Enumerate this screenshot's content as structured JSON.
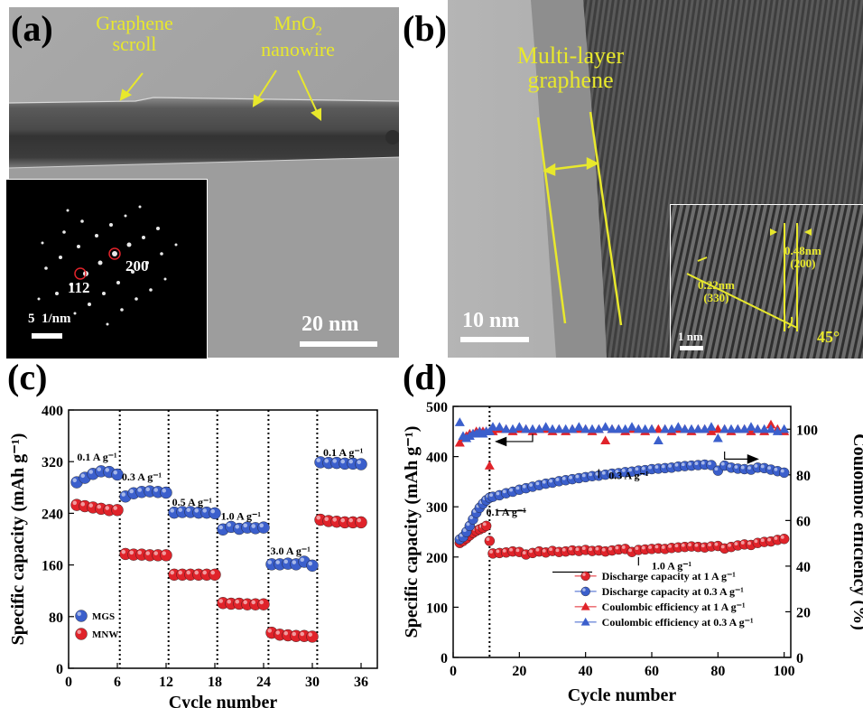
{
  "figure": {
    "panels": {
      "a": {
        "label": "(a)",
        "annotations": [
          "Graphene",
          "scroll",
          "MnO",
          "2",
          "nanowire"
        ],
        "inset": {
          "spots": [
            "200",
            "112"
          ],
          "scale_num": "5",
          "scale_unit": "1/nm"
        },
        "scale_bar": "20 nm"
      },
      "b": {
        "label": "(b)",
        "annotations": [
          "Multi-layer",
          "graphene"
        ],
        "scale_bar": "10 nm",
        "inset": {
          "d1": "0.48nm",
          "d1_plane": "(200)",
          "d2": "0.22nm",
          "d2_plane": "(330)",
          "angle": "45°",
          "scale_bar": "1 nm"
        }
      },
      "c": {
        "label": "(c)"
      },
      "d": {
        "label": "(d)"
      }
    }
  },
  "chart_data": [
    {
      "type": "scatter",
      "panel": "c",
      "xlabel": "Cycle number",
      "ylabel": "Specific capacity (mAh g⁻¹)",
      "xlim": [
        0,
        38
      ],
      "ylim": [
        0,
        400
      ],
      "xticks": [
        0,
        6,
        12,
        18,
        24,
        30,
        36
      ],
      "yticks": [
        0,
        80,
        160,
        240,
        320,
        400
      ],
      "legend_position": "bottom-left",
      "rate_labels": [
        {
          "text": "0.1 A g⁻¹",
          "x": 3.5,
          "y": 322
        },
        {
          "text": "0.3 A g⁻¹",
          "x": 9.0,
          "y": 291
        },
        {
          "text": "0.5 A g⁻¹",
          "x": 15.2,
          "y": 252
        },
        {
          "text": "1.0 A g⁻¹",
          "x": 21.2,
          "y": 230
        },
        {
          "text": "3.0 A g⁻¹",
          "x": 27.3,
          "y": 176
        },
        {
          "text": "0.1 A g⁻¹",
          "x": 33.8,
          "y": 329
        }
      ],
      "dividers_x": [
        6.3,
        12.3,
        18.3,
        24.6,
        30.6
      ],
      "series": [
        {
          "name": "MGS",
          "color": "#3b5fcc",
          "x": [
            1,
            2,
            3,
            4,
            5,
            6,
            7,
            8,
            9,
            10,
            11,
            12,
            13,
            14,
            15,
            16,
            17,
            18,
            19,
            20,
            21,
            22,
            23,
            24,
            25,
            26,
            27,
            28,
            29,
            30,
            31,
            32,
            33,
            34,
            35,
            36
          ],
          "y": [
            288,
            295,
            301,
            305,
            304,
            300,
            266,
            271,
            273,
            274,
            273,
            272,
            241,
            242,
            242,
            241,
            241,
            240,
            215,
            219,
            216,
            218,
            217,
            218,
            161,
            161,
            162,
            161,
            165,
            159,
            319,
            318,
            318,
            317,
            317,
            316
          ]
        },
        {
          "name": "MNW",
          "color": "#e0232a",
          "x": [
            1,
            2,
            3,
            4,
            5,
            6,
            7,
            8,
            9,
            10,
            11,
            12,
            13,
            14,
            15,
            16,
            17,
            18,
            19,
            20,
            21,
            22,
            23,
            24,
            25,
            26,
            27,
            28,
            29,
            30,
            31,
            32,
            33,
            34,
            35,
            36
          ],
          "y": [
            253,
            251,
            249,
            247,
            245,
            245,
            177,
            176,
            176,
            175,
            175,
            175,
            145,
            145,
            145,
            145,
            145,
            145,
            101,
            100,
            100,
            99,
            99,
            99,
            55,
            52,
            51,
            50,
            50,
            49,
            230,
            228,
            227,
            226,
            226,
            226
          ]
        }
      ]
    },
    {
      "type": "scatter",
      "panel": "d",
      "xlabel": "Cycle number",
      "ylabel": "Specific capacity (mAh g⁻¹)",
      "y2label": "Coulombic efficiency (%)",
      "xlim": [
        0,
        102
      ],
      "ylim": [
        0,
        500
      ],
      "y2lim": [
        0,
        110
      ],
      "xticks": [
        0,
        20,
        40,
        60,
        80,
        100
      ],
      "yticks": [
        0,
        100,
        200,
        300,
        400,
        500
      ],
      "y2ticks": [
        0,
        20,
        40,
        60,
        80,
        100
      ],
      "legend_position": "bottom-right",
      "divider_x": 11,
      "annotations": [
        {
          "text": "0.3 A g⁻¹",
          "x": 53,
          "y": 355
        },
        {
          "text": "0.1 A g⁻¹",
          "x": 16,
          "y": 282
        },
        {
          "text": "1.0 A g⁻¹",
          "x": 66,
          "y": 175
        }
      ],
      "series": [
        {
          "name": "Discharge capacity at 1 A g⁻¹",
          "axis": "left",
          "marker": "circle",
          "color": "#e0232a",
          "x": [
            2,
            3,
            4,
            5,
            6,
            7,
            8,
            9,
            10,
            11,
            12,
            14,
            16,
            18,
            20,
            22,
            24,
            26,
            28,
            30,
            32,
            34,
            36,
            38,
            40,
            42,
            44,
            46,
            48,
            50,
            52,
            54,
            56,
            58,
            60,
            62,
            64,
            66,
            68,
            70,
            72,
            74,
            76,
            78,
            80,
            82,
            84,
            86,
            88,
            90,
            92,
            94,
            96,
            98,
            100
          ],
          "y": [
            228,
            232,
            237,
            243,
            248,
            252,
            255,
            258,
            262,
            232,
            207,
            208,
            209,
            211,
            210,
            205,
            208,
            211,
            209,
            212,
            210,
            211,
            213,
            212,
            214,
            212,
            213,
            211,
            213,
            215,
            216,
            210,
            214,
            215,
            216,
            217,
            216,
            218,
            219,
            220,
            221,
            220,
            219,
            221,
            222,
            217,
            220,
            223,
            225,
            224,
            228,
            230,
            231,
            234,
            236
          ]
        },
        {
          "name": "Discharge capacity at 0.3 A g⁻¹",
          "axis": "left",
          "marker": "circle",
          "color": "#3b5fcc",
          "x": [
            2,
            3,
            4,
            5,
            6,
            7,
            8,
            9,
            10,
            11,
            12,
            14,
            16,
            18,
            20,
            22,
            24,
            26,
            28,
            30,
            32,
            34,
            36,
            38,
            40,
            42,
            44,
            46,
            48,
            50,
            52,
            54,
            56,
            58,
            60,
            62,
            64,
            66,
            68,
            70,
            72,
            74,
            76,
            78,
            80,
            82,
            84,
            86,
            88,
            90,
            92,
            94,
            96,
            98,
            100
          ],
          "y": [
            235,
            240,
            250,
            262,
            275,
            288,
            298,
            306,
            313,
            318,
            320,
            323,
            327,
            330,
            334,
            337,
            340,
            343,
            346,
            348,
            351,
            353,
            355,
            357,
            359,
            361,
            362,
            364,
            366,
            367,
            369,
            370,
            372,
            373,
            375,
            376,
            377,
            378,
            380,
            381,
            382,
            383,
            384,
            383,
            372,
            382,
            378,
            376,
            375,
            374,
            378,
            377,
            374,
            371,
            368
          ]
        },
        {
          "name": "Coulombic efficiency at 1 A g⁻¹",
          "axis": "right",
          "marker": "triangle",
          "color": "#e0232a",
          "x": [
            2,
            3,
            4,
            5,
            6,
            7,
            8,
            9,
            10,
            11,
            12,
            14,
            16,
            18,
            20,
            22,
            24,
            26,
            28,
            30,
            32,
            34,
            36,
            38,
            40,
            42,
            44,
            46,
            48,
            50,
            52,
            54,
            56,
            58,
            60,
            62,
            64,
            66,
            68,
            70,
            72,
            74,
            76,
            78,
            80,
            82,
            84,
            86,
            88,
            90,
            92,
            94,
            96,
            98,
            100
          ],
          "y": [
            94,
            96,
            97,
            98,
            98,
            99,
            99,
            99,
            99,
            84,
            99,
            100,
            100,
            99,
            100,
            100,
            99,
            100,
            100,
            99,
            100,
            99,
            100,
            100,
            100,
            99,
            100,
            95,
            100,
            100,
            99,
            100,
            100,
            99,
            100,
            100,
            100,
            99,
            100,
            100,
            99,
            100,
            100,
            99,
            100,
            100,
            99,
            100,
            100,
            99,
            100,
            99,
            102,
            100,
            99
          ]
        },
        {
          "name": "Coulombic efficiency at 0.3 A g⁻¹",
          "axis": "right",
          "marker": "triangle",
          "color": "#3b5fcc",
          "x": [
            2,
            3,
            4,
            5,
            6,
            7,
            8,
            9,
            10,
            11,
            12,
            14,
            16,
            18,
            20,
            22,
            24,
            26,
            28,
            30,
            32,
            34,
            36,
            38,
            40,
            42,
            44,
            46,
            48,
            50,
            52,
            54,
            56,
            58,
            60,
            62,
            64,
            66,
            68,
            70,
            72,
            74,
            76,
            78,
            80,
            82,
            84,
            86,
            88,
            90,
            92,
            94,
            96,
            98,
            100
          ],
          "y": [
            103,
            97,
            96,
            97,
            98,
            98,
            99,
            98,
            99,
            99,
            101,
            101,
            100,
            100,
            101,
            100,
            100,
            100,
            101,
            100,
            100,
            100,
            100,
            101,
            100,
            100,
            100,
            101,
            100,
            100,
            100,
            101,
            100,
            100,
            100,
            95,
            100,
            100,
            101,
            100,
            100,
            100,
            100,
            101,
            96,
            100,
            100,
            100,
            100,
            101,
            100,
            100,
            100,
            99,
            100
          ]
        }
      ]
    }
  ]
}
